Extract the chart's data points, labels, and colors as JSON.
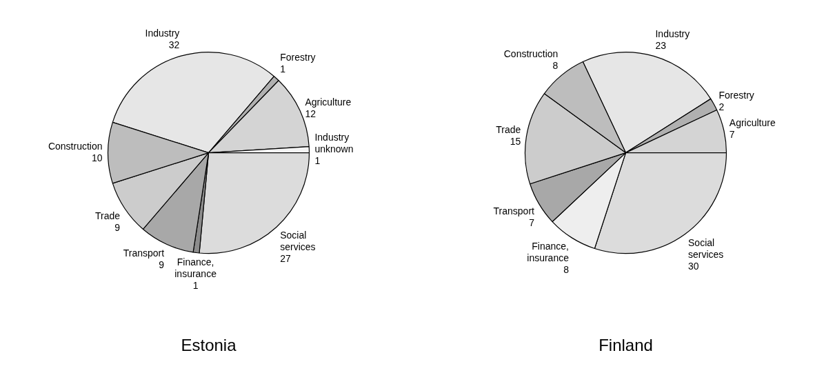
{
  "chart_data": [
    {
      "type": "pie",
      "title": "Estonia",
      "categories": [
        "Industry",
        "Forestry",
        "Agriculture",
        "Industry unknown",
        "Social services",
        "Finance, insurance",
        "Transport",
        "Trade",
        "Construction"
      ],
      "values": [
        32,
        1,
        12,
        1,
        27,
        1,
        9,
        9,
        10
      ],
      "colors": [
        "#e6e6e6",
        "#b0b0b0",
        "#d4d4d4",
        "#f4f4f4",
        "#dcdcdc",
        "#8c8c8c",
        "#a8a8a8",
        "#cccccc",
        "#bdbdbd"
      ],
      "data_labels": true,
      "legend": false
    },
    {
      "type": "pie",
      "title": "Finland",
      "categories": [
        "Industry",
        "Forestry",
        "Agriculture",
        "Social services",
        "Finance, insurance",
        "Transport",
        "Trade",
        "Construction"
      ],
      "values": [
        23,
        2,
        7,
        30,
        8,
        7,
        15,
        8
      ],
      "colors": [
        "#e6e6e6",
        "#b0b0b0",
        "#d4d4d4",
        "#dcdcdc",
        "#eeeeee",
        "#a8a8a8",
        "#cccccc",
        "#bdbdbd"
      ],
      "data_labels": true,
      "legend": false
    }
  ]
}
